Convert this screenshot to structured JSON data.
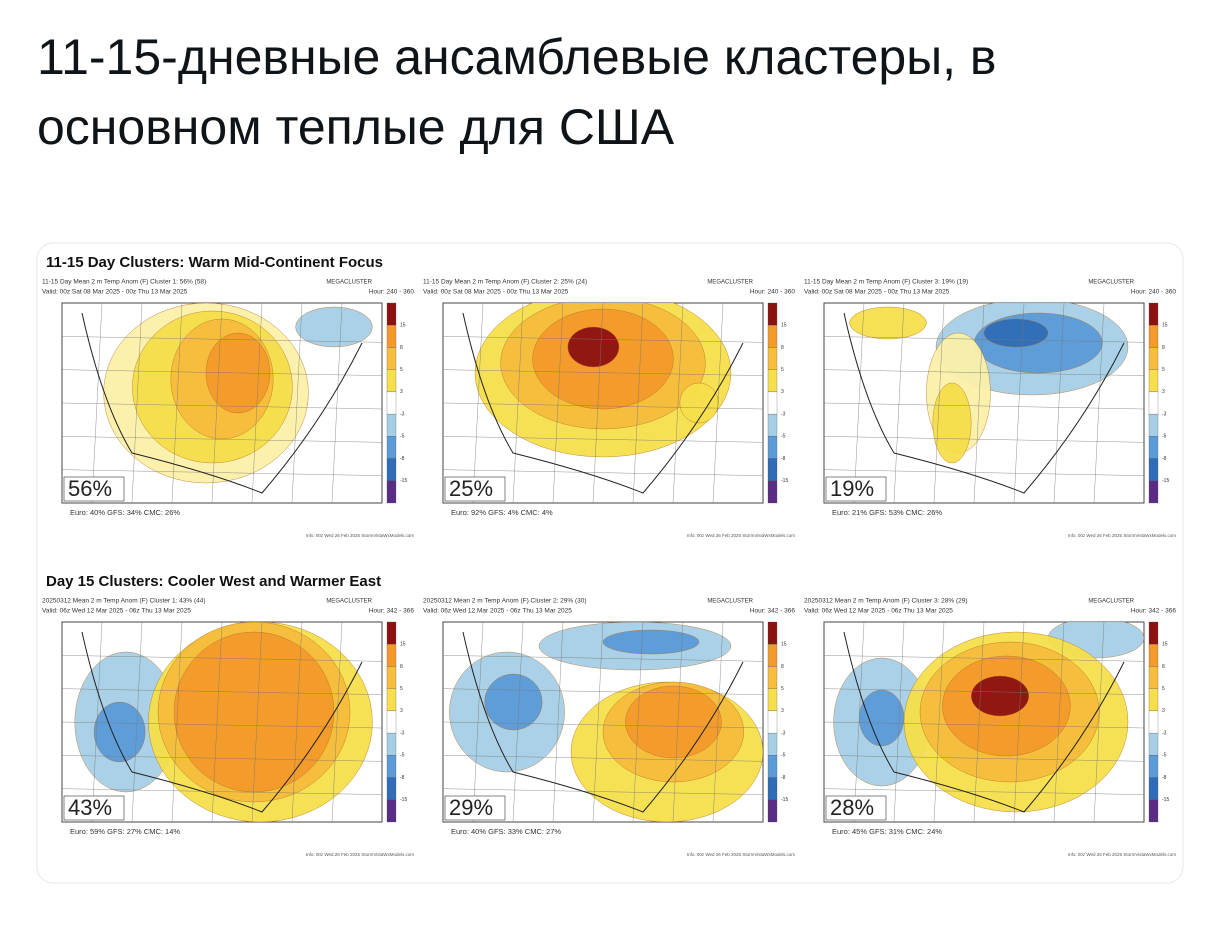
{
  "post": {
    "title_lines": [
      "11-15-дневные ансамблевые кластеры, в",
      "основном теплые для США"
    ]
  },
  "image": {
    "colorbar_ticks": [
      15,
      8,
      5,
      3,
      -3,
      -5,
      -8,
      -15
    ],
    "sections": [
      {
        "title": "11-15 Day Clusters: Warm Mid-Continent Focus",
        "panels": [
          {
            "header": "11-15 Day Mean 2 m Temp Anom (F) Cluster 1: 56% (58)",
            "valid": "Valid: 00z Sat 08 Mar 2025 - 00z Thu 13 Mar 2025",
            "label": "MEGACLUSTER",
            "hours": "Hour: 240 - 360",
            "percent": "56%",
            "members": "Euro: 40% GFS: 34% CMC: 26%",
            "credit": "Info: 00z Wed 26 Feb 2025 StormVistaWxModels.com"
          },
          {
            "header": "11-15 Day Mean 2 m Temp Anom (F) Cluster 2: 25% (24)",
            "valid": "Valid: 00z Sat 08 Mar 2025 - 00z Thu 13 Mar 2025",
            "label": "MEGACLUSTER",
            "hours": "Hour: 240 - 360",
            "percent": "25%",
            "members": "Euro: 92% GFS: 4% CMC: 4%",
            "credit": "Info: 00z Wed 26 Feb 2025 StormVistaWxModels.com"
          },
          {
            "header": "11-15 Day Mean 2 m Temp Anom (F) Cluster 3: 19% (19)",
            "valid": "Valid: 00z Sat 08 Mar 2025 - 00z Thu 13 Mar 2025",
            "label": "MEGACLUSTER",
            "hours": "Hour: 240 - 360",
            "percent": "19%",
            "members": "Euro: 21% GFS: 53% CMC: 26%",
            "credit": "Info: 00z Wed 26 Feb 2025 StormVistaWxModels.com"
          }
        ]
      },
      {
        "title": "Day 15 Clusters: Cooler West and Warmer East",
        "panels": [
          {
            "header": "20250312 Mean 2 m Temp Anom (F) Cluster 1: 43% (44)",
            "valid": "Valid: 06z Wed 12 Mar 2025 - 06z Thu 13 Mar 2025",
            "label": "MEGACLUSTER",
            "hours": "Hour: 342 - 366",
            "percent": "43%",
            "members": "Euro: 59% GFS: 27% CMC: 14%",
            "credit": "Info: 00z Wed 26 Feb 2025 StormVistaWxModels.com"
          },
          {
            "header": "20250312 Mean 2 m Temp Anom (F) Cluster 2: 29% (30)",
            "valid": "Valid: 06z Wed 12 Mar 2025 - 06z Thu 13 Mar 2025",
            "label": "MEGACLUSTER",
            "hours": "Hour: 342 - 366",
            "percent": "29%",
            "members": "Euro: 40% GFS: 33% CMC: 27%",
            "credit": "Info: 00z Wed 26 Feb 2025 StormVistaWxModels.com"
          },
          {
            "header": "20250312 Mean 2 m Temp Anom (F) Cluster 3: 28% (29)",
            "valid": "Valid: 06z Wed 12 Mar 2025 - 06z Thu 13 Mar 2025",
            "label": "MEGACLUSTER",
            "hours": "Hour: 342 - 366",
            "percent": "28%",
            "members": "Euro: 45% GFS: 31% CMC: 24%",
            "credit": "Info: 00z Wed 26 Feb 2025 StormVistaWxModels.com"
          }
        ]
      }
    ]
  }
}
